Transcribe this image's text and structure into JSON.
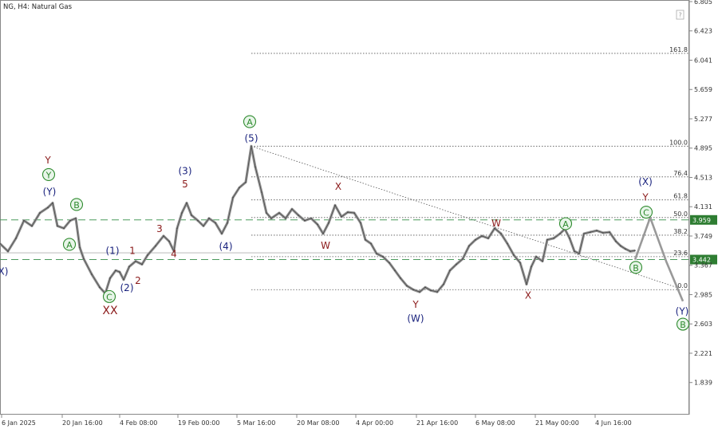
{
  "header": {
    "title": "NG, H4:  Natural Gas"
  },
  "chart_data": {
    "type": "line",
    "ylim": [
      1.649,
      6.805
    ],
    "y_ticks": [
      "6.805",
      "6.423",
      "6.041",
      "5.659",
      "5.277",
      "4.895",
      "4.513",
      "4.131",
      "3.749",
      "3.367",
      "2.985",
      "2.603",
      "2.221",
      "1.839"
    ],
    "x_ticks": [
      "6 Jan 2025",
      "20 Jan 16:00",
      "4 Feb 08:00",
      "19 Feb 00:00",
      "5 Mar 16:00",
      "20 Mar 08:00",
      "4 Apr 00:00",
      "21 Apr 16:00",
      "6 May 08:00",
      "21 May 00:00",
      "4 Jun 16:00"
    ],
    "price_series": [
      [
        0,
        3.65
      ],
      [
        10,
        3.55
      ],
      [
        20,
        3.72
      ],
      [
        30,
        3.95
      ],
      [
        40,
        3.88
      ],
      [
        50,
        4.05
      ],
      [
        60,
        4.12
      ],
      [
        66,
        4.18
      ],
      [
        72,
        3.88
      ],
      [
        80,
        3.85
      ],
      [
        88,
        3.95
      ],
      [
        95,
        3.98
      ],
      [
        100,
        3.6
      ],
      [
        105,
        3.45
      ],
      [
        115,
        3.25
      ],
      [
        125,
        3.08
      ],
      [
        132,
        3.0
      ],
      [
        138,
        3.2
      ],
      [
        145,
        3.3
      ],
      [
        150,
        3.28
      ],
      [
        155,
        3.18
      ],
      [
        162,
        3.35
      ],
      [
        170,
        3.42
      ],
      [
        178,
        3.38
      ],
      [
        185,
        3.5
      ],
      [
        195,
        3.62
      ],
      [
        205,
        3.75
      ],
      [
        212,
        3.68
      ],
      [
        218,
        3.55
      ],
      [
        222,
        3.85
      ],
      [
        228,
        4.05
      ],
      [
        234,
        4.18
      ],
      [
        240,
        4.02
      ],
      [
        248,
        3.95
      ],
      [
        255,
        3.88
      ],
      [
        262,
        3.98
      ],
      [
        270,
        3.92
      ],
      [
        278,
        3.78
      ],
      [
        285,
        3.92
      ],
      [
        292,
        4.25
      ],
      [
        300,
        4.38
      ],
      [
        308,
        4.45
      ],
      [
        315,
        4.92
      ],
      [
        320,
        4.65
      ],
      [
        328,
        4.32
      ],
      [
        334,
        4.05
      ],
      [
        340,
        3.98
      ],
      [
        350,
        4.05
      ],
      [
        358,
        3.98
      ],
      [
        366,
        4.1
      ],
      [
        374,
        4.02
      ],
      [
        382,
        3.95
      ],
      [
        390,
        3.98
      ],
      [
        398,
        3.9
      ],
      [
        405,
        3.78
      ],
      [
        412,
        3.92
      ],
      [
        420,
        4.15
      ],
      [
        428,
        4.0
      ],
      [
        436,
        4.06
      ],
      [
        444,
        4.05
      ],
      [
        452,
        3.92
      ],
      [
        458,
        3.7
      ],
      [
        465,
        3.65
      ],
      [
        472,
        3.52
      ],
      [
        480,
        3.48
      ],
      [
        488,
        3.4
      ],
      [
        495,
        3.3
      ],
      [
        502,
        3.2
      ],
      [
        510,
        3.1
      ],
      [
        518,
        3.05
      ],
      [
        526,
        3.02
      ],
      [
        533,
        3.08
      ],
      [
        540,
        3.04
      ],
      [
        548,
        3.02
      ],
      [
        556,
        3.12
      ],
      [
        564,
        3.3
      ],
      [
        572,
        3.38
      ],
      [
        580,
        3.45
      ],
      [
        588,
        3.62
      ],
      [
        596,
        3.7
      ],
      [
        604,
        3.75
      ],
      [
        612,
        3.72
      ],
      [
        620,
        3.85
      ],
      [
        628,
        3.78
      ],
      [
        636,
        3.65
      ],
      [
        644,
        3.5
      ],
      [
        652,
        3.4
      ],
      [
        660,
        3.12
      ],
      [
        666,
        3.35
      ],
      [
        672,
        3.48
      ],
      [
        680,
        3.42
      ],
      [
        686,
        3.7
      ],
      [
        694,
        3.72
      ],
      [
        702,
        3.78
      ],
      [
        708,
        3.84
      ],
      [
        714,
        3.72
      ],
      [
        720,
        3.55
      ],
      [
        726,
        3.52
      ],
      [
        732,
        3.78
      ],
      [
        740,
        3.8
      ],
      [
        748,
        3.82
      ],
      [
        756,
        3.79
      ],
      [
        764,
        3.8
      ],
      [
        772,
        3.68
      ],
      [
        778,
        3.62
      ],
      [
        784,
        3.58
      ],
      [
        790,
        3.55
      ],
      [
        796,
        3.56
      ]
    ],
    "projection": [
      [
        796,
        3.44
      ],
      [
        815,
        3.99
      ],
      [
        835,
        3.42
      ],
      [
        856,
        2.9
      ]
    ],
    "trendline": [
      [
        315,
        4.92
      ],
      [
        848,
        3.08
      ]
    ],
    "horizontal_levels": [
      {
        "value": 3.959,
        "label": "3.959",
        "style": "dashed-green",
        "price_label": true
      },
      {
        "value": 3.442,
        "label": "3.442",
        "style": "dashed-green",
        "price_label": true
      },
      {
        "value": 3.53,
        "label": "",
        "style": "solid-gray"
      }
    ],
    "fib_levels": [
      {
        "value": 6.13,
        "label": "161.8"
      },
      {
        "value": 4.92,
        "label": "100.0"
      },
      {
        "value": 4.52,
        "label": "76.4"
      },
      {
        "value": 4.22,
        "label": "61.8"
      },
      {
        "value": 3.99,
        "label": "50.0"
      },
      {
        "value": 3.76,
        "label": "38.2"
      },
      {
        "value": 3.48,
        "label": "23.6"
      },
      {
        "value": 3.05,
        "label": "0.0"
      }
    ],
    "wave_labels": [
      {
        "text": "Y",
        "color": "#8b1a1a",
        "circled": false,
        "x": 60,
        "y": 4.74
      },
      {
        "text": "Y",
        "color": "#2e8b2e",
        "circled": true,
        "x": 61,
        "y": 4.55
      },
      {
        "text": "(Y)",
        "color": "#1a237e",
        "circled": false,
        "x": 62,
        "y": 4.33
      },
      {
        "text": "B",
        "color": "#2e8b2e",
        "circled": true,
        "x": 96,
        "y": 4.16
      },
      {
        "text": "A",
        "color": "#2e8b2e",
        "circled": true,
        "x": 87,
        "y": 3.64
      },
      {
        "text": "(1)",
        "color": "#1a237e",
        "circled": false,
        "x": 141,
        "y": 3.56
      },
      {
        "text": "1",
        "color": "#8b1a1a",
        "circled": false,
        "x": 166,
        "y": 3.56
      },
      {
        "text": "2",
        "color": "#8b1a1a",
        "circled": false,
        "x": 173,
        "y": 3.17
      },
      {
        "text": "(2)",
        "color": "#1a237e",
        "circled": false,
        "x": 159,
        "y": 3.08
      },
      {
        "text": "C",
        "color": "#2e8b2e",
        "circled": true,
        "x": 137,
        "y": 2.96
      },
      {
        "text": "XX",
        "color": "#8b1a1a",
        "circled": false,
        "x": 138,
        "y": 2.78
      },
      {
        "text": "3",
        "color": "#8b1a1a",
        "circled": false,
        "x": 200,
        "y": 3.85
      },
      {
        "text": "4",
        "color": "#8b1a1a",
        "circled": false,
        "x": 218,
        "y": 3.52
      },
      {
        "text": "(3)",
        "color": "#1a237e",
        "circled": false,
        "x": 232,
        "y": 4.6
      },
      {
        "text": "5",
        "color": "#8b1a1a",
        "circled": false,
        "x": 232,
        "y": 4.43
      },
      {
        "text": "(4)",
        "color": "#1a237e",
        "circled": false,
        "x": 283,
        "y": 3.62
      },
      {
        "text": "A",
        "color": "#2e8b2e",
        "circled": true,
        "x": 313,
        "y": 5.24
      },
      {
        "text": "(5)",
        "color": "#1a237e",
        "circled": false,
        "x": 315,
        "y": 5.03
      },
      {
        "text": "X",
        "color": "#8b1a1a",
        "circled": false,
        "x": 424,
        "y": 4.4
      },
      {
        "text": "W",
        "color": "#8b1a1a",
        "circled": false,
        "x": 408,
        "y": 3.63
      },
      {
        "text": "Y",
        "color": "#8b1a1a",
        "circled": false,
        "x": 521,
        "y": 2.86
      },
      {
        "text": "(W)",
        "color": "#1a237e",
        "circled": false,
        "x": 521,
        "y": 2.68
      },
      {
        "text": "W",
        "color": "#8b1a1a",
        "circled": false,
        "x": 622,
        "y": 3.92
      },
      {
        "text": "X",
        "color": "#8b1a1a",
        "circled": false,
        "x": 662,
        "y": 2.98
      },
      {
        "text": "A",
        "color": "#2e8b2e",
        "circled": true,
        "x": 709,
        "y": 3.91
      },
      {
        "text": "(X)",
        "color": "#1a237e",
        "circled": false,
        "x": 809,
        "y": 4.46
      },
      {
        "text": "Y",
        "color": "#8b1a1a",
        "circled": false,
        "x": 809,
        "y": 4.26
      },
      {
        "text": "C",
        "color": "#2e8b2e",
        "circled": true,
        "x": 810,
        "y": 4.06
      },
      {
        "text": "B",
        "color": "#2e8b2e",
        "circled": true,
        "x": 797,
        "y": 3.34
      },
      {
        "text": "(Y)",
        "color": "#1a237e",
        "circled": false,
        "x": 855,
        "y": 2.77
      },
      {
        "text": "B",
        "color": "#2e8b2e",
        "circled": true,
        "x": 856,
        "y": 2.6
      },
      {
        "text": "X)",
        "color": "#1a237e",
        "circled": false,
        "x": 4,
        "y": 3.29
      }
    ]
  }
}
